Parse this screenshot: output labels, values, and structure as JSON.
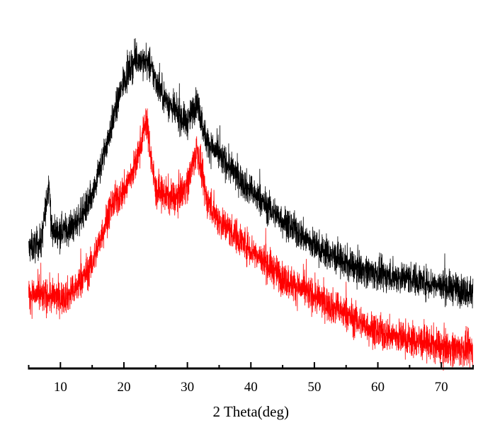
{
  "chart_data": {
    "type": "line",
    "title": "",
    "xlabel": "2 Theta(deg)",
    "ylabel": "",
    "xlim": [
      5,
      75
    ],
    "ylim": [
      0,
      100
    ],
    "y_units": "arbitrary intensity (no y-axis shown)",
    "x_ticks": [
      10,
      20,
      30,
      40,
      50,
      60,
      70
    ],
    "x_tick_labels": [
      "10",
      "20",
      "30",
      "40",
      "50",
      "60",
      "70"
    ],
    "x_minor_ticks": [
      5,
      15,
      25,
      35,
      45,
      55,
      65,
      75
    ],
    "grid": false,
    "legend": null,
    "series": [
      {
        "name": "black pattern",
        "color": "#000000",
        "noise": 3.2,
        "x": [
          5,
          7,
          7.8,
          8.2,
          8.6,
          10,
          12,
          15,
          18,
          20,
          22,
          24,
          26,
          28,
          30,
          31.5,
          33,
          36,
          40,
          45,
          50,
          55,
          60,
          65,
          70,
          75
        ],
        "y": [
          33,
          35,
          46,
          52,
          38,
          38,
          39,
          47,
          67,
          80,
          86,
          84,
          76,
          71,
          68,
          74,
          63,
          57,
          49,
          41,
          34,
          29,
          26,
          25,
          23,
          21
        ]
      },
      {
        "name": "red pattern",
        "color": "#ff0000",
        "noise": 3.4,
        "x": [
          5,
          10,
          12,
          15,
          18,
          20,
          22,
          23.5,
          25,
          28,
          30,
          31.5,
          33,
          35,
          40,
          45,
          50,
          55,
          60,
          65,
          70,
          75
        ],
        "y": [
          20.6,
          19.6,
          21,
          29,
          45,
          49,
          57,
          69,
          49,
          47,
          51,
          61,
          47,
          41,
          33,
          25,
          20,
          15,
          10,
          8,
          6,
          5
        ]
      }
    ]
  }
}
